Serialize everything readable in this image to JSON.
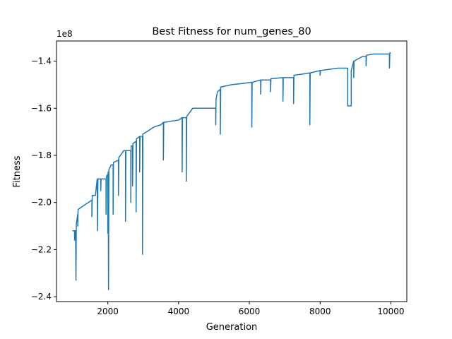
{
  "chart_data": {
    "type": "line",
    "title": "Best Fitness for num_genes_80",
    "xlabel": "Generation",
    "ylabel": "Fitness",
    "y_offset_label": "1e8",
    "x": [
      1000,
      1060,
      1060,
      1070,
      1090,
      1100,
      1110,
      1150,
      1150,
      1160,
      1250,
      1350,
      1450,
      1550,
      1550,
      1560,
      1650,
      1700,
      1710,
      1720,
      1800,
      1800,
      1810,
      1950,
      1950,
      1960,
      2000,
      2000,
      2010,
      2020,
      2030,
      2100,
      2150,
      2150,
      2160,
      2300,
      2300,
      2310,
      2450,
      2500,
      2500,
      2510,
      2650,
      2650,
      2660,
      2700,
      2700,
      2710,
      2800,
      2800,
      2810,
      2900,
      2900,
      2910,
      2980,
      2980,
      2990,
      3100,
      3300,
      3500,
      3570,
      3570,
      3580,
      4000,
      4100,
      4100,
      4110,
      4220,
      4220,
      4230,
      4400,
      5050,
      5050,
      5060,
      5100,
      5180,
      5180,
      5190,
      5500,
      5800,
      6070,
      6070,
      6080,
      6320,
      6320,
      6330,
      6600,
      6600,
      6610,
      6950,
      6950,
      6960,
      7250,
      7250,
      7260,
      7500,
      7710,
      7710,
      7720,
      8000,
      8000,
      8010,
      8500,
      8780,
      8780,
      8880,
      8880,
      8950,
      8950,
      8960,
      9200,
      9300,
      9300,
      9310,
      9500,
      9960,
      9960,
      9970,
      10000
    ],
    "values": [
      -2.12,
      -2.12,
      -2.16,
      -2.12,
      -2.12,
      -2.33,
      -2.09,
      -2.05,
      -2.1,
      -2.03,
      -2.02,
      -2.01,
      -2.0,
      -1.99,
      -2.06,
      -1.97,
      -1.97,
      -1.9,
      -2.12,
      -1.9,
      -1.9,
      -1.95,
      -1.9,
      -1.9,
      -2.05,
      -1.89,
      -1.88,
      -2.13,
      -1.87,
      -2.37,
      -1.86,
      -1.84,
      -1.84,
      -2.05,
      -1.83,
      -1.82,
      -1.97,
      -1.81,
      -1.78,
      -1.78,
      -2.08,
      -1.78,
      -1.78,
      -2.0,
      -1.76,
      -1.76,
      -1.93,
      -1.75,
      -1.74,
      -2.04,
      -1.73,
      -1.72,
      -1.87,
      -1.72,
      -1.72,
      -2.22,
      -1.71,
      -1.7,
      -1.68,
      -1.67,
      -1.66,
      -1.82,
      -1.66,
      -1.65,
      -1.64,
      -1.87,
      -1.64,
      -1.64,
      -1.91,
      -1.635,
      -1.6,
      -1.6,
      -1.67,
      -1.56,
      -1.53,
      -1.52,
      -1.71,
      -1.51,
      -1.5,
      -1.495,
      -1.49,
      -1.68,
      -1.49,
      -1.48,
      -1.54,
      -1.48,
      -1.48,
      -1.53,
      -1.475,
      -1.47,
      -1.57,
      -1.47,
      -1.47,
      -1.58,
      -1.46,
      -1.455,
      -1.45,
      -1.67,
      -1.45,
      -1.44,
      -1.46,
      -1.44,
      -1.43,
      -1.43,
      -1.59,
      -1.59,
      -1.44,
      -1.4,
      -1.47,
      -1.4,
      -1.38,
      -1.38,
      -1.42,
      -1.375,
      -1.37,
      -1.37,
      -1.43,
      -1.365,
      -1.365
    ],
    "color": "#1f77b4",
    "xlim": [
      550,
      10450
    ],
    "xticks": [
      2000,
      4000,
      6000,
      8000,
      10000
    ],
    "ylim": [
      -2.4205,
      -1.3145
    ],
    "yticks": [
      {
        "value": -2.4,
        "label": "−2.4"
      },
      {
        "value": -2.2,
        "label": "−2.2"
      },
      {
        "value": -2.0,
        "label": "−2.0"
      },
      {
        "value": -1.8,
        "label": "−1.8"
      },
      {
        "value": -1.6,
        "label": "−1.6"
      },
      {
        "value": -1.4,
        "label": "−1.4"
      }
    ]
  }
}
